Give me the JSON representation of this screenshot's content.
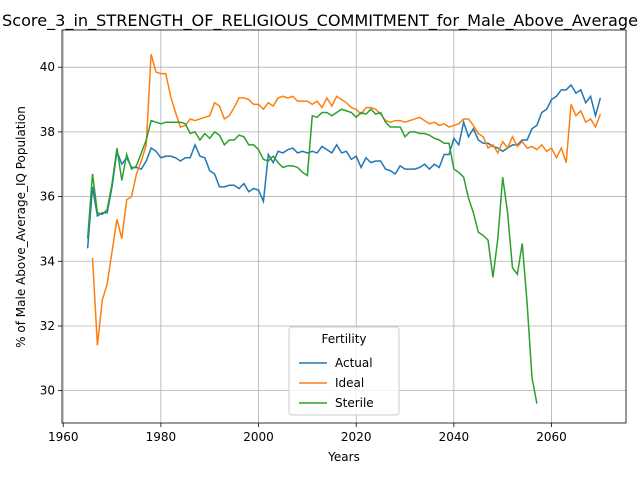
{
  "chart_data": {
    "type": "line",
    "title": "Score_3_in_STRENGTH_OF_RELIGIOUS_COMMITMENT_for_Male_Above_Average",
    "xlabel": "Years",
    "ylabel": "% of Male Above_Average_IQ Population",
    "legend_title": "Fertility",
    "legend_position": "lower center",
    "grid": true,
    "xlim": [
      1959.75,
      2075.25
    ],
    "xticks": [
      1960,
      1980,
      2000,
      2020,
      2040,
      2060
    ],
    "ylim": [
      29.0,
      41.15
    ],
    "yticks": [
      30,
      32,
      34,
      36,
      38,
      40
    ],
    "x": [
      1965,
      1966,
      1967,
      1968,
      1969,
      1970,
      1971,
      1972,
      1973,
      1974,
      1975,
      1976,
      1977,
      1978,
      1979,
      1980,
      1981,
      1982,
      1983,
      1984,
      1985,
      1986,
      1987,
      1988,
      1989,
      1990,
      1991,
      1992,
      1993,
      1994,
      1995,
      1996,
      1997,
      1998,
      1999,
      2000,
      2001,
      2002,
      2003,
      2004,
      2005,
      2006,
      2007,
      2008,
      2009,
      2010,
      2011,
      2012,
      2013,
      2014,
      2015,
      2016,
      2017,
      2018,
      2019,
      2020,
      2021,
      2022,
      2023,
      2024,
      2025,
      2026,
      2027,
      2028,
      2029,
      2030,
      2031,
      2032,
      2033,
      2034,
      2035,
      2036,
      2037,
      2038,
      2039,
      2040,
      2041,
      2042,
      2043,
      2044,
      2045,
      2046,
      2047,
      2048,
      2049,
      2050,
      2051,
      2052,
      2053,
      2054,
      2055,
      2056,
      2057,
      2058,
      2059,
      2060,
      2061,
      2062,
      2063,
      2064,
      2065,
      2066,
      2067,
      2068,
      2069,
      2070
    ],
    "series": [
      {
        "name": "Actual",
        "color": "#1f77b4",
        "values": [
          34.4,
          36.3,
          35.4,
          35.5,
          35.5,
          36.3,
          37.4,
          37.0,
          37.2,
          36.9,
          36.9,
          36.85,
          37.1,
          37.5,
          37.4,
          37.2,
          37.25,
          37.25,
          37.2,
          37.1,
          37.2,
          37.2,
          37.6,
          37.25,
          37.2,
          36.8,
          36.7,
          36.3,
          36.3,
          36.35,
          36.35,
          36.25,
          36.4,
          36.15,
          36.25,
          36.2,
          35.85,
          37.3,
          37.05,
          37.4,
          37.35,
          37.45,
          37.5,
          37.35,
          37.4,
          37.35,
          37.4,
          37.35,
          37.55,
          37.45,
          37.35,
          37.6,
          37.35,
          37.4,
          37.15,
          37.25,
          36.9,
          37.2,
          37.05,
          37.1,
          37.1,
          36.85,
          36.8,
          36.7,
          36.95,
          36.85,
          36.85,
          36.85,
          36.9,
          37.0,
          36.85,
          37.0,
          36.9,
          37.3,
          37.3,
          37.8,
          37.6,
          38.3,
          37.85,
          38.1,
          37.75,
          37.65,
          37.65,
          37.55,
          37.5,
          37.4,
          37.5,
          37.6,
          37.6,
          37.75,
          37.75,
          38.1,
          38.2,
          38.6,
          38.7,
          39.0,
          39.1,
          39.3,
          39.3,
          39.45,
          39.2,
          39.3,
          38.9,
          39.1,
          38.5,
          39.05
        ]
      },
      {
        "name": "Ideal",
        "color": "#ff7f0e",
        "values": [
          null,
          34.1,
          31.4,
          32.8,
          33.3,
          34.3,
          35.3,
          34.7,
          35.9,
          36.0,
          36.7,
          37.1,
          37.6,
          40.4,
          39.85,
          39.8,
          39.8,
          39.1,
          38.6,
          38.15,
          38.2,
          38.4,
          38.35,
          38.4,
          38.45,
          38.5,
          38.9,
          38.8,
          38.4,
          38.5,
          38.75,
          39.05,
          39.05,
          39.0,
          38.85,
          38.85,
          38.7,
          38.9,
          38.8,
          39.05,
          39.1,
          39.05,
          39.1,
          38.95,
          38.95,
          38.95,
          38.85,
          38.95,
          38.75,
          39.05,
          38.8,
          39.1,
          39.0,
          38.9,
          38.75,
          38.7,
          38.55,
          38.75,
          38.75,
          38.7,
          38.55,
          38.35,
          38.3,
          38.35,
          38.35,
          38.3,
          38.35,
          38.4,
          38.45,
          38.35,
          38.25,
          38.3,
          38.2,
          38.25,
          38.15,
          38.2,
          38.25,
          38.4,
          38.4,
          38.2,
          37.95,
          37.85,
          37.5,
          37.6,
          37.35,
          37.7,
          37.5,
          37.85,
          37.55,
          37.7,
          37.5,
          37.55,
          37.45,
          37.6,
          37.4,
          37.5,
          37.2,
          37.5,
          37.05,
          38.85,
          38.5,
          38.65,
          38.3,
          38.4,
          38.15,
          38.55
        ]
      },
      {
        "name": "Sterile",
        "color": "#2ca02c",
        "values": [
          34.7,
          36.7,
          35.5,
          35.45,
          35.6,
          36.4,
          37.5,
          36.5,
          37.3,
          36.85,
          36.95,
          37.35,
          37.75,
          38.35,
          38.3,
          38.25,
          38.3,
          38.3,
          38.3,
          38.3,
          38.25,
          37.95,
          38.0,
          37.75,
          37.95,
          37.8,
          38.0,
          37.9,
          37.6,
          37.75,
          37.75,
          37.9,
          37.85,
          37.6,
          37.6,
          37.45,
          37.15,
          37.1,
          37.25,
          37.05,
          36.9,
          36.95,
          36.95,
          36.9,
          36.75,
          36.65,
          38.5,
          38.45,
          38.6,
          38.6,
          38.5,
          38.6,
          38.7,
          38.65,
          38.6,
          38.45,
          38.6,
          38.55,
          38.7,
          38.55,
          38.6,
          38.3,
          38.15,
          38.15,
          38.15,
          37.85,
          38.0,
          38.0,
          37.95,
          37.95,
          37.9,
          37.8,
          37.75,
          37.65,
          37.65,
          36.85,
          36.75,
          36.6,
          35.95,
          35.5,
          34.9,
          34.8,
          34.65,
          33.5,
          34.7,
          36.6,
          35.5,
          33.8,
          33.6,
          34.55,
          32.7,
          30.4,
          29.6,
          null,
          null,
          null,
          null,
          null,
          null,
          null,
          null,
          null,
          null,
          null,
          null,
          null
        ]
      }
    ]
  }
}
